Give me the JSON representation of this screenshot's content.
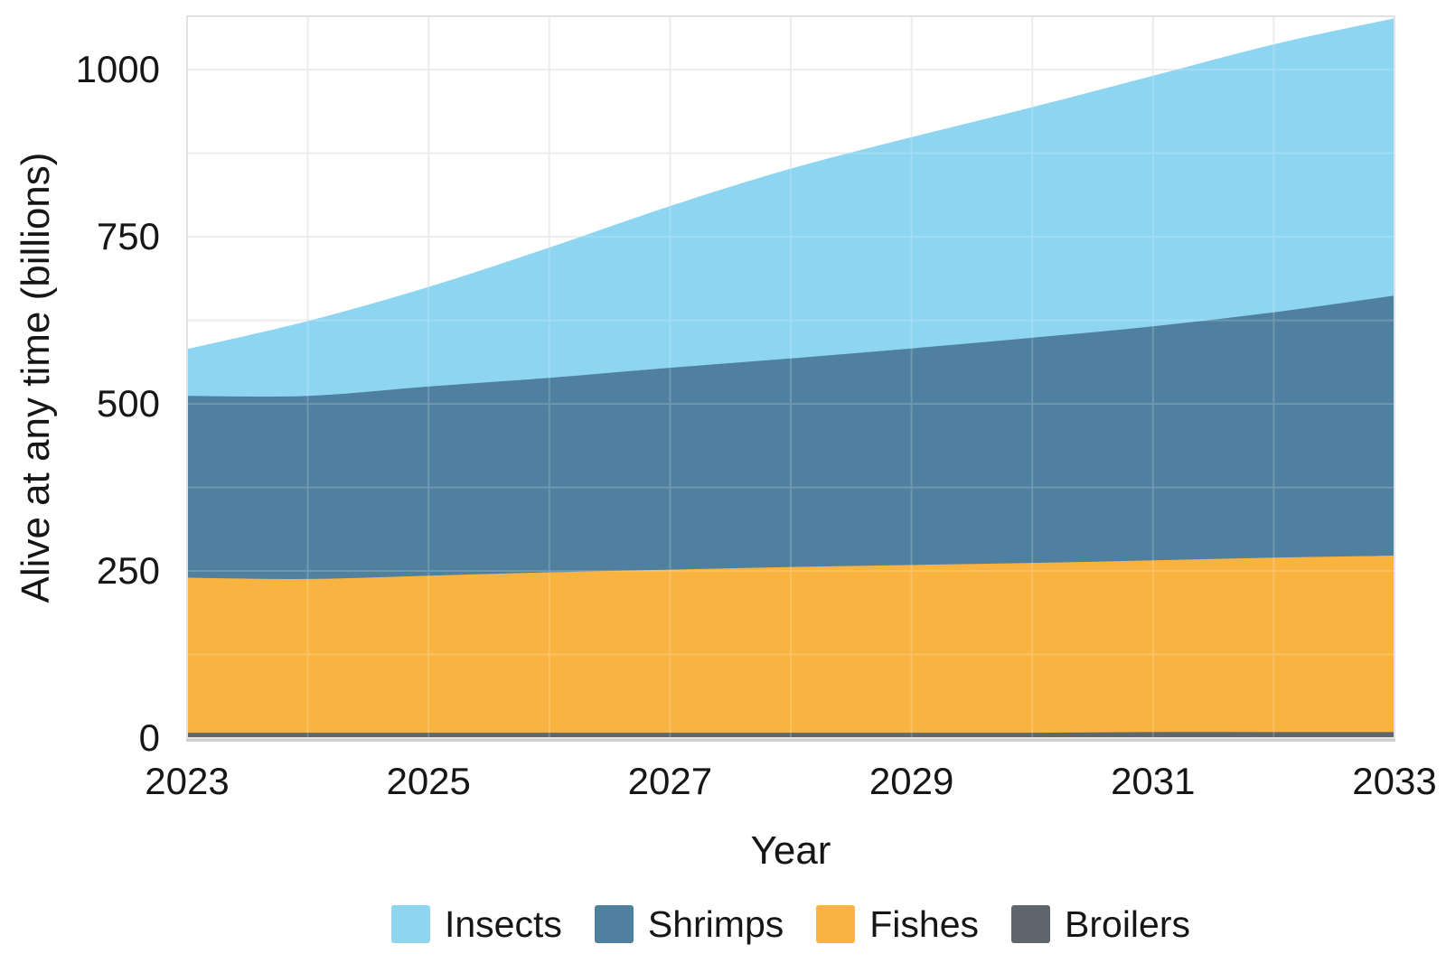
{
  "colors": {
    "background": "#ffffff",
    "grid": "#e9e9e9",
    "grid_over_fill": "rgba(255,255,255,0.18)",
    "plot_border": "#e2e2e2",
    "axis_line": "#ccd0d3",
    "text": "#161616",
    "insects": "#8ed5f2",
    "shrimps": "#4f809f",
    "fishes": "#f9b341",
    "broilers": "#60666d"
  },
  "axes": {
    "y_title": "Alive at any time (billions)",
    "x_title": "Year",
    "y_ticks": [
      {
        "value": 0,
        "label": "0"
      },
      {
        "value": 250,
        "label": "250"
      },
      {
        "value": 500,
        "label": "500"
      },
      {
        "value": 750,
        "label": "750"
      },
      {
        "value": 1000,
        "label": "1000"
      }
    ],
    "x_ticks": [
      {
        "value": 2023,
        "label": "2023"
      },
      {
        "value": 2025,
        "label": "2025"
      },
      {
        "value": 2027,
        "label": "2027"
      },
      {
        "value": 2029,
        "label": "2029"
      },
      {
        "value": 2031,
        "label": "2031"
      },
      {
        "value": 2033,
        "label": "2033"
      }
    ]
  },
  "chart_data": {
    "type": "area",
    "stacked": true,
    "title": "",
    "xlabel": "Year",
    "ylabel": "Alive at any time (billions)",
    "x": [
      2023,
      2024,
      2025,
      2026,
      2027,
      2028,
      2029,
      2030,
      2031,
      2032,
      2033
    ],
    "xlim": [
      2023,
      2033
    ],
    "ylim": [
      0,
      1080
    ],
    "grid": {
      "visible": true,
      "y_step": 125,
      "x_step": 1
    },
    "legend_position": "bottom",
    "series": [
      {
        "name": "Broilers",
        "color": "#60666d",
        "values": [
          8,
          8,
          8,
          8,
          8,
          8,
          8,
          8,
          9,
          9,
          9
        ]
      },
      {
        "name": "Fishes",
        "color": "#f9b341",
        "values": [
          232,
          230,
          235,
          240,
          244,
          248,
          251,
          254,
          257,
          261,
          264
        ]
      },
      {
        "name": "Shrimps",
        "color": "#4f809f",
        "values": [
          272,
          274,
          283,
          291,
          302,
          312,
          324,
          337,
          350,
          367,
          389
        ]
      },
      {
        "name": "Insects",
        "color": "#8ed5f2",
        "values": [
          70,
          112,
          149,
          195,
          242,
          284,
          316,
          345,
          375,
          401,
          415
        ]
      }
    ],
    "stacked_totals": [
      582,
      624,
      675,
      734,
      796,
      852,
      899,
      944,
      991,
      1038,
      1077
    ],
    "legend": [
      {
        "label": "Insects",
        "color": "#8ed5f2"
      },
      {
        "label": "Shrimps",
        "color": "#4f809f"
      },
      {
        "label": "Fishes",
        "color": "#f9b341"
      },
      {
        "label": "Broilers",
        "color": "#60666d"
      }
    ]
  }
}
